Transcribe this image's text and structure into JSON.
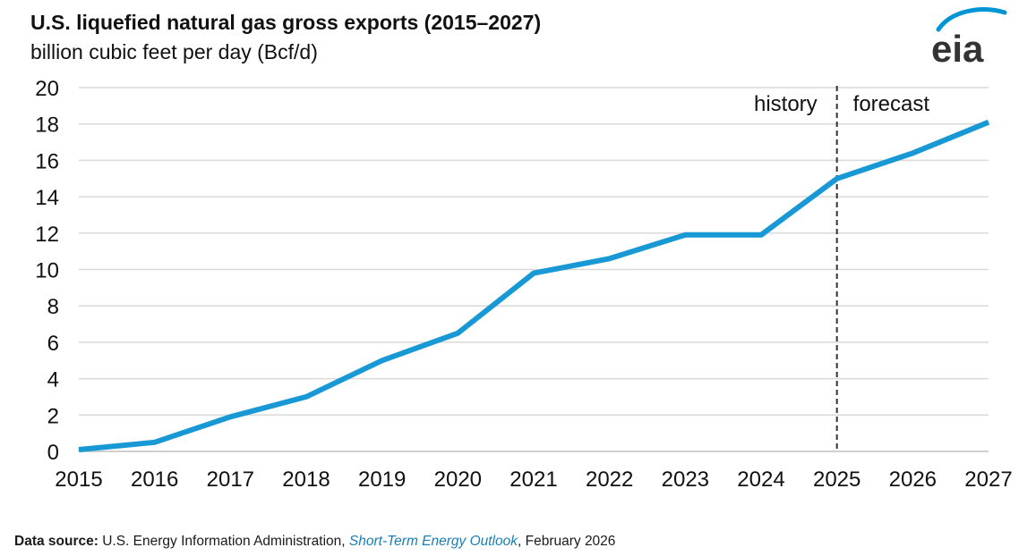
{
  "header": {
    "title": "U.S. liquefied natural gas gross exports (2015–2027)",
    "subtitle": "billion cubic feet per day (Bcf/d)",
    "logo_text": "eia"
  },
  "footer": {
    "label": "Data source:",
    "source": "U.S. Energy Information Administration,",
    "publication": "Short-Term Energy Outlook",
    "date": ", February 2026"
  },
  "colors": {
    "series": "#1898d4",
    "grid": "#d9d9d9",
    "divider": "#333333",
    "link": "#1a7fb5",
    "logo_arc": "#0096d6"
  },
  "chart_data": {
    "type": "line",
    "title": "U.S. liquefied natural gas gross exports (2015–2027)",
    "subtitle": "billion cubic feet per day (Bcf/d)",
    "xlabel": "",
    "ylabel": "billion cubic feet per day (Bcf/d)",
    "x": [
      2015,
      2016,
      2017,
      2018,
      2019,
      2020,
      2021,
      2022,
      2023,
      2024,
      2025,
      2026,
      2027
    ],
    "x_tick_labels": [
      "2015",
      "2016",
      "2017",
      "2018",
      "2019",
      "2020",
      "2021",
      "2022",
      "2023",
      "2024",
      "2025",
      "2026",
      "2027"
    ],
    "y_tick_labels": [
      "0",
      "2",
      "4",
      "6",
      "8",
      "10",
      "12",
      "14",
      "16",
      "18",
      "20"
    ],
    "ylim": [
      0,
      20
    ],
    "xlim": [
      2015,
      2027
    ],
    "grid": true,
    "series": [
      {
        "name": "U.S. LNG gross exports",
        "values": [
          0.1,
          0.5,
          1.9,
          3.0,
          5.0,
          6.5,
          9.8,
          10.6,
          11.9,
          11.9,
          15.0,
          16.4,
          18.1
        ]
      }
    ],
    "divider": {
      "x": 2025,
      "left_label": "history",
      "right_label": "forecast"
    }
  }
}
